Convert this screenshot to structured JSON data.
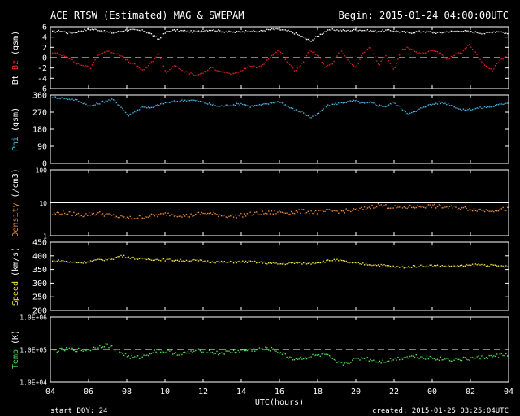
{
  "header": {
    "title": "ACE RTSW (Estimated) MAG & SWEPAM",
    "begin": "Begin: 2015-01-24 04:00:00UTC"
  },
  "footer": {
    "start_doy": "start DOY:  24",
    "created": "created: 2015-01-25 03:25:04UTC",
    "xlabel": "UTC(hours)"
  },
  "x_ticks": [
    "04",
    "06",
    "08",
    "10",
    "12",
    "14",
    "16",
    "18",
    "20",
    "22",
    "00",
    "02",
    "04"
  ],
  "chart_data": [
    {
      "type": "scatter",
      "ylabel_parts": [
        {
          "text": "Bt",
          "color": "#ffffff"
        },
        {
          "text": "Bz",
          "color": "#ff3030"
        },
        {
          "text": "(gsm)",
          "color": "#ffffff"
        }
      ],
      "ylim": [
        -6,
        6
      ],
      "yticks": [
        "6",
        "4",
        "2",
        "0",
        "-2",
        "-4",
        "-6"
      ],
      "ref_line": {
        "y": 0,
        "style": "dashed"
      },
      "series": [
        {
          "name": "Bt",
          "color": "#f0f0f0",
          "y": [
            5.0,
            5.2,
            4.8,
            4.9,
            5.3,
            5.5,
            5.4,
            5.0,
            4.8,
            5.1,
            5.4,
            5.3,
            5.2,
            4.6,
            3.5,
            5.0,
            5.3,
            5.2,
            5.1,
            5.0,
            5.3,
            5.4,
            5.2,
            5.0,
            4.9,
            5.1,
            5.2,
            5.0,
            5.3,
            5.5,
            5.4,
            5.2,
            4.7,
            4.0,
            3.2,
            4.2,
            5.1,
            5.4,
            5.3,
            5.2,
            5.4,
            5.3,
            5.2,
            5.1,
            5.3,
            5.2,
            5.0,
            4.8,
            5.0,
            5.1,
            4.9,
            4.8,
            5.0,
            5.1,
            5.2,
            5.0,
            4.9,
            4.7,
            5.0,
            5.1,
            4.6
          ]
        },
        {
          "name": "Bz",
          "color": "#e02020",
          "y": [
            1.0,
            0.6,
            0.2,
            -1.0,
            -1.5,
            -2.0,
            0.5,
            1.2,
            1.0,
            0.5,
            -0.8,
            -1.5,
            -2.5,
            -1.0,
            0.8,
            -3.0,
            -1.5,
            -2.5,
            -3.0,
            -3.5,
            -2.8,
            -2.0,
            -2.5,
            -3.0,
            -3.2,
            -2.5,
            -1.5,
            -2.0,
            -1.0,
            0.5,
            1.5,
            -1.0,
            -2.5,
            -1.0,
            1.5,
            0.5,
            -2.0,
            -1.0,
            1.5,
            -0.5,
            -2.0,
            1.0,
            2.0,
            -1.5,
            0.5,
            -2.5,
            1.5,
            2.0,
            1.0,
            0.8,
            1.5,
            1.0,
            -0.5,
            0.5,
            1.0,
            2.5,
            0.5,
            -1.5,
            -2.5,
            -0.5,
            0.5
          ]
        }
      ]
    },
    {
      "type": "scatter",
      "ylabel_parts": [
        {
          "text": "Phi",
          "color": "#4ab4e6"
        },
        {
          "text": "(gsm)",
          "color": "#ffffff"
        }
      ],
      "ylim": [
        0,
        360
      ],
      "yticks": [
        "360",
        "270",
        "180",
        "90",
        "0"
      ],
      "series": [
        {
          "name": "Phi",
          "color": "#4ab4e6",
          "y": [
            350,
            345,
            340,
            335,
            320,
            300,
            315,
            330,
            335,
            300,
            250,
            275,
            300,
            290,
            310,
            320,
            325,
            330,
            335,
            330,
            320,
            310,
            300,
            305,
            310,
            315,
            300,
            305,
            310,
            320,
            325,
            300,
            280,
            270,
            240,
            260,
            300,
            310,
            320,
            325,
            330,
            315,
            320,
            305,
            300,
            320,
            290,
            260,
            275,
            300,
            310,
            320,
            315,
            300,
            280,
            285,
            290,
            295,
            300,
            310,
            320
          ]
        }
      ]
    },
    {
      "type": "scatter",
      "ylabel_parts": [
        {
          "text": "Density",
          "color": "#e88a3c"
        },
        {
          "text": "(/cm3)",
          "color": "#ffffff"
        }
      ],
      "scale": "log",
      "ylim": [
        1,
        100
      ],
      "yticks": [
        "100",
        "10",
        "1"
      ],
      "ref_line": {
        "y": 10,
        "style": "solid"
      },
      "series": [
        {
          "name": "Density",
          "color": "#e88a3c",
          "y": [
            4.5,
            5,
            4.8,
            4.5,
            4.2,
            4.6,
            4.8,
            4.4,
            4.0,
            3.6,
            3.4,
            3.5,
            3.8,
            4.0,
            4.2,
            4.6,
            4.4,
            4.2,
            4.0,
            4.5,
            4.8,
            4.6,
            4.3,
            4.0,
            3.9,
            4.2,
            4.5,
            4.7,
            4.8,
            5.0,
            5.2,
            5.0,
            5.2,
            5.5,
            5.3,
            5.2,
            5.4,
            5.6,
            5.5,
            5.7,
            6.0,
            6.5,
            7.5,
            8.5,
            7.8,
            7.2,
            7.0,
            7.4,
            7.6,
            7.8,
            8.0,
            7.6,
            7.2,
            7.0,
            6.8,
            6.5,
            6.2,
            5.8,
            6.0,
            6.2,
            6.5
          ]
        }
      ]
    },
    {
      "type": "scatter",
      "ylabel_parts": [
        {
          "text": "Speed",
          "color": "#f0e040"
        },
        {
          "text": "(km/s)",
          "color": "#ffffff"
        }
      ],
      "ylim": [
        200,
        450
      ],
      "yticks": [
        "450",
        "400",
        "350",
        "300",
        "250",
        "200"
      ],
      "series": [
        {
          "name": "Speed",
          "color": "#f0e040",
          "y": [
            380,
            382,
            378,
            376,
            375,
            380,
            384,
            386,
            390,
            400,
            395,
            390,
            388,
            387,
            386,
            385,
            384,
            383,
            382,
            383,
            380,
            378,
            377,
            376,
            377,
            378,
            378,
            376,
            374,
            372,
            370,
            372,
            374,
            373,
            372,
            376,
            380,
            385,
            382,
            376,
            372,
            370,
            368,
            366,
            364,
            360,
            358,
            360,
            362,
            363,
            364,
            363,
            362,
            362,
            363,
            365,
            368,
            366,
            364,
            362,
            360
          ]
        }
      ]
    },
    {
      "type": "scatter",
      "ylabel_parts": [
        {
          "text": "Temp",
          "color": "#50e050"
        },
        {
          "text": "(K)",
          "color": "#ffffff"
        }
      ],
      "scale": "log",
      "ylim": [
        10000,
        1000000
      ],
      "yticks": [
        "1.0E+06",
        "1.0E+05",
        "1.0E+04"
      ],
      "ref_line": {
        "y": 100000,
        "style": "dashed"
      },
      "series": [
        {
          "name": "Temp",
          "color": "#50e050",
          "y": [
            90000,
            95000,
            100000,
            98000,
            95000,
            100000,
            120000,
            140000,
            110000,
            80000,
            60000,
            55000,
            60000,
            80000,
            90000,
            85000,
            80000,
            70000,
            80000,
            90000,
            95000,
            80000,
            75000,
            80000,
            85000,
            90000,
            95000,
            100000,
            105000,
            100000,
            80000,
            60000,
            50000,
            55000,
            60000,
            65000,
            70000,
            45000,
            35000,
            40000,
            50000,
            55000,
            48000,
            42000,
            45000,
            50000,
            55000,
            60000,
            62000,
            58000,
            55000,
            52000,
            50000,
            48000,
            50000,
            52000,
            55000,
            58000,
            60000,
            65000,
            70000
          ]
        }
      ]
    }
  ]
}
